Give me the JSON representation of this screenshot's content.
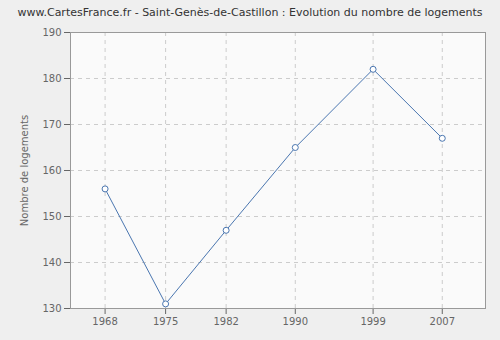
{
  "chart_data": {
    "type": "line",
    "title": "www.CartesFrance.fr - Saint-Genès-de-Castillon : Evolution du nombre de logements",
    "y_label": "Nombre de logements",
    "x": [
      1968,
      1975,
      1982,
      1990,
      1999,
      2007
    ],
    "values": [
      156,
      131,
      147,
      165,
      182,
      167
    ],
    "color": "#4a76b0",
    "marker": "circle",
    "xlim": [
      1964,
      2012
    ],
    "xticks": [
      1968,
      1975,
      1982,
      1990,
      1999,
      2007
    ],
    "ylim": [
      130,
      190
    ],
    "yticks": [
      130,
      140,
      150,
      160,
      170,
      180,
      190
    ],
    "grid": true
  }
}
